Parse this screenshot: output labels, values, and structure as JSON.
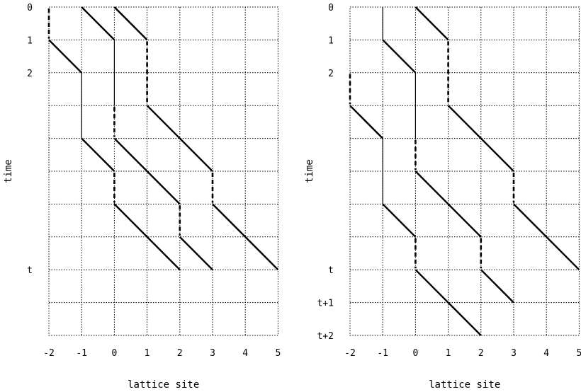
{
  "panels": [
    {
      "id": "left",
      "ylabel": "time",
      "xlabel": "lattice site",
      "x_ticks": [
        "-2",
        "-1",
        "0",
        "1",
        "2",
        "3",
        "4",
        "5"
      ],
      "time_labels": [
        {
          "row": 0,
          "text": "0"
        },
        {
          "row": 1,
          "text": "1"
        },
        {
          "row": 2,
          "text": "2"
        },
        {
          "row": 8,
          "text": "t"
        }
      ],
      "rows": 10,
      "segments": [
        {
          "kind": "dash",
          "site": -2,
          "t0": 0,
          "t1": 1
        },
        {
          "kind": "diag",
          "site0": -1,
          "t0": 0,
          "site1": 0,
          "t1": 1
        },
        {
          "kind": "diag",
          "site0": 0,
          "t0": 0,
          "site1": 1,
          "t1": 1
        },
        {
          "kind": "diag",
          "site0": -2,
          "t0": 1,
          "site1": -1,
          "t1": 2
        },
        {
          "kind": "solid",
          "site": 0,
          "t0": 1,
          "t1": 3
        },
        {
          "kind": "dash",
          "site": 1,
          "t0": 1,
          "t1": 3
        },
        {
          "kind": "solid",
          "site": -1,
          "t0": 2,
          "t1": 4
        },
        {
          "kind": "dash",
          "site": 0,
          "t0": 3,
          "t1": 4
        },
        {
          "kind": "diag",
          "site0": 1,
          "t0": 3,
          "site1": 3,
          "t1": 5
        },
        {
          "kind": "diag",
          "site0": -1,
          "t0": 4,
          "site1": 0,
          "t1": 5
        },
        {
          "kind": "diag",
          "site0": 0,
          "t0": 4,
          "site1": 2,
          "t1": 6
        },
        {
          "kind": "dash",
          "site": 0,
          "t0": 5,
          "t1": 6
        },
        {
          "kind": "dash",
          "site": 3,
          "t0": 5,
          "t1": 6
        },
        {
          "kind": "diag",
          "site0": 0,
          "t0": 6,
          "site1": 2,
          "t1": 8
        },
        {
          "kind": "dash",
          "site": 2,
          "t0": 6,
          "t1": 7
        },
        {
          "kind": "diag",
          "site0": 3,
          "t0": 6,
          "site1": 5,
          "t1": 8
        },
        {
          "kind": "diag",
          "site0": 2,
          "t0": 7,
          "site1": 3,
          "t1": 8
        }
      ]
    },
    {
      "id": "right",
      "ylabel": "time",
      "xlabel": "lattice site",
      "x_ticks": [
        "-2",
        "-1",
        "0",
        "1",
        "2",
        "3",
        "4",
        "5"
      ],
      "time_labels": [
        {
          "row": 0,
          "text": "0"
        },
        {
          "row": 1,
          "text": "1"
        },
        {
          "row": 2,
          "text": "2"
        },
        {
          "row": 8,
          "text": "t"
        },
        {
          "row": 9,
          "text": "t+1"
        },
        {
          "row": 10,
          "text": "t+2"
        }
      ],
      "rows": 10,
      "segments": [
        {
          "kind": "solid",
          "site": -1,
          "t0": 0,
          "t1": 1
        },
        {
          "kind": "diag",
          "site0": 0,
          "t0": 0,
          "site1": 1,
          "t1": 1
        },
        {
          "kind": "diag",
          "site0": -1,
          "t0": 1,
          "site1": 0,
          "t1": 2
        },
        {
          "kind": "dash",
          "site": 1,
          "t0": 1,
          "t1": 3
        },
        {
          "kind": "dash",
          "site": -2,
          "t0": 2,
          "t1": 3
        },
        {
          "kind": "solid",
          "site": 0,
          "t0": 2,
          "t1": 4
        },
        {
          "kind": "diag",
          "site0": -2,
          "t0": 3,
          "site1": -1,
          "t1": 4
        },
        {
          "kind": "diag",
          "site0": 1,
          "t0": 3,
          "site1": 3,
          "t1": 5
        },
        {
          "kind": "solid",
          "site": -1,
          "t0": 4,
          "t1": 6
        },
        {
          "kind": "dash",
          "site": 0,
          "t0": 4,
          "t1": 5
        },
        {
          "kind": "diag",
          "site0": 0,
          "t0": 5,
          "site1": 2,
          "t1": 7
        },
        {
          "kind": "dash",
          "site": 3,
          "t0": 5,
          "t1": 6
        },
        {
          "kind": "diag",
          "site0": -1,
          "t0": 6,
          "site1": 0,
          "t1": 7
        },
        {
          "kind": "diag",
          "site0": 3,
          "t0": 6,
          "site1": 5,
          "t1": 8
        },
        {
          "kind": "dash",
          "site": 0,
          "t0": 7,
          "t1": 8
        },
        {
          "kind": "dash",
          "site": 2,
          "t0": 7,
          "t1": 8
        },
        {
          "kind": "diag",
          "site0": 0,
          "t0": 8,
          "site1": 2,
          "t1": 10
        },
        {
          "kind": "diag",
          "site0": 2,
          "t0": 8,
          "site1": 3,
          "t1": 9
        }
      ]
    }
  ]
}
